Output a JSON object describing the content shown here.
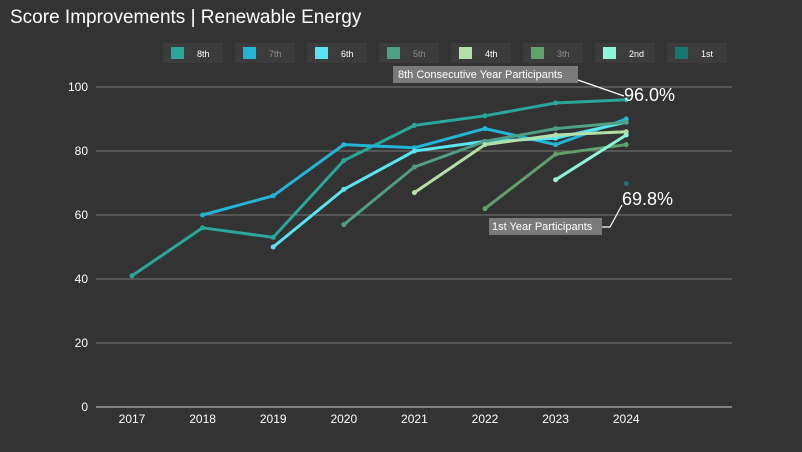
{
  "chart_data": {
    "type": "line",
    "title": "Score Improvements | Renewable Energy",
    "xlabel": "",
    "ylabel": "",
    "x": [
      "2017",
      "2018",
      "2019",
      "2020",
      "2021",
      "2022",
      "2023",
      "2024"
    ],
    "ylim": [
      0,
      100
    ],
    "yticks": [
      0,
      20,
      40,
      60,
      80,
      100
    ],
    "grid": true,
    "legend_position": "top",
    "series": [
      {
        "name": "8th",
        "color": "#2aa79b",
        "legend_text_color": "#ffffff",
        "values": [
          41,
          56,
          53,
          77,
          88,
          91,
          95,
          96
        ]
      },
      {
        "name": "7th",
        "color": "#22b5d6",
        "legend_text_color": "#8f8f8f",
        "values": [
          null,
          60,
          66,
          82,
          81,
          87,
          82,
          90
        ]
      },
      {
        "name": "6th",
        "color": "#5ae4f2",
        "legend_text_color": "#ffffff",
        "values": [
          null,
          null,
          50,
          68,
          80,
          83,
          84,
          89
        ]
      },
      {
        "name": "5th",
        "color": "#4f9e86",
        "legend_text_color": "#8f8f8f",
        "values": [
          null,
          null,
          null,
          57,
          75,
          83,
          87,
          89
        ]
      },
      {
        "name": "4th",
        "color": "#b3e0a6",
        "legend_text_color": "#ffffff",
        "values": [
          null,
          null,
          null,
          null,
          67,
          82,
          85,
          86
        ]
      },
      {
        "name": "3th",
        "color": "#5fa06b",
        "legend_text_color": "#8f8f8f",
        "values": [
          null,
          null,
          null,
          null,
          null,
          62,
          79,
          82
        ]
      },
      {
        "name": "2nd",
        "color": "#8ff5da",
        "legend_text_color": "#ffffff",
        "values": [
          null,
          null,
          null,
          null,
          null,
          null,
          71,
          85
        ]
      },
      {
        "name": "1st",
        "color": "#14786e",
        "legend_text_color": "#ffffff",
        "values": [
          null,
          null,
          null,
          null,
          null,
          null,
          null,
          69.8
        ]
      }
    ],
    "annotations": [
      {
        "label": "8th Consecutive Year Participants",
        "value_text": "96.0%"
      },
      {
        "label": "1st Year Participants",
        "value_text": "69.8%"
      }
    ]
  }
}
